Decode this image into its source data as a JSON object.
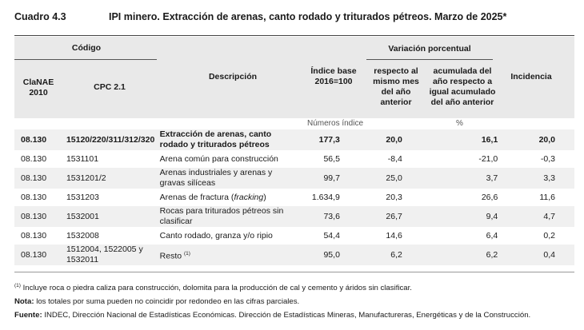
{
  "table_number": "Cuadro 4.3",
  "title": "IPI minero. Extracción de arenas, canto rodado y triturados pétreos. Marzo de 2025*",
  "headers": {
    "codigo": "Código",
    "clanae": "ClaNAE 2010",
    "cpc": "CPC 2.1",
    "descripcion": "Descripción",
    "indice": "Índice base 2016=100",
    "variacion": "Variación porcentual",
    "var_mes": "respecto al mismo mes del año anterior",
    "var_acum": "acumulada del año respecto a igual acumulado del año anterior",
    "incidencia": "Incidencia"
  },
  "units": {
    "indice": "Números índice",
    "variacion": "%"
  },
  "rows": [
    {
      "clanae": "08.130",
      "cpc": "15120/220/311/312/320",
      "descripcion": "Extracción de arenas, canto rodado y triturados pétreos",
      "indice": "177,3",
      "var_mes": "20,0",
      "var_acum": "16,1",
      "incidencia": "20,0"
    },
    {
      "clanae": "08.130",
      "cpc": "1531101",
      "descripcion": "Arena común para construcción",
      "indice": "56,5",
      "var_mes": "-8,4",
      "var_acum": "-21,0",
      "incidencia": "-0,3"
    },
    {
      "clanae": "08.130",
      "cpc": "1531201/2",
      "descripcion": "Arenas industriales y arenas y gravas silíceas",
      "indice": "99,7",
      "var_mes": "25,0",
      "var_acum": "3,7",
      "incidencia": "3,3"
    },
    {
      "clanae": "08.130",
      "cpc": "1531203",
      "descripcion_pre": "Arenas de fractura (",
      "descripcion_em": "fracking",
      "descripcion_post": ")",
      "indice": "1.634,9",
      "var_mes": "20,3",
      "var_acum": "26,6",
      "incidencia": "11,6"
    },
    {
      "clanae": "08.130",
      "cpc": "1532001",
      "descripcion": "Rocas para triturados pétreos sin clasificar",
      "indice": "73,6",
      "var_mes": "26,7",
      "var_acum": "9,4",
      "incidencia": "4,7"
    },
    {
      "clanae": "08.130",
      "cpc": "1532008",
      "descripcion": "Canto rodado, granza y/o ripio",
      "indice": "54,4",
      "var_mes": "14,6",
      "var_acum": "6,4",
      "incidencia": "0,2"
    },
    {
      "clanae": "08.130",
      "cpc": "1512004, 1522005 y 1532011",
      "descripcion": "Resto",
      "descripcion_sup": "(1)",
      "indice": "95,0",
      "var_mes": "6,2",
      "var_acum": "6,2",
      "incidencia": "0,4"
    }
  ],
  "notes": {
    "fn1_mark": "(1)",
    "fn1": "Incluye roca o piedra caliza para construcción, dolomita para la producción de cal y cemento y áridos sin clasificar.",
    "nota_label": "Nota:",
    "nota": "los totales por suma pueden no coincidir por redondeo en las cifras parciales.",
    "fuente_label": "Fuente:",
    "fuente": "INDEC, Dirección Nacional de Estadísticas Económicas. Dirección de Estadísticas Mineras, Manufactureras, Energéticas y de la Construcción."
  }
}
